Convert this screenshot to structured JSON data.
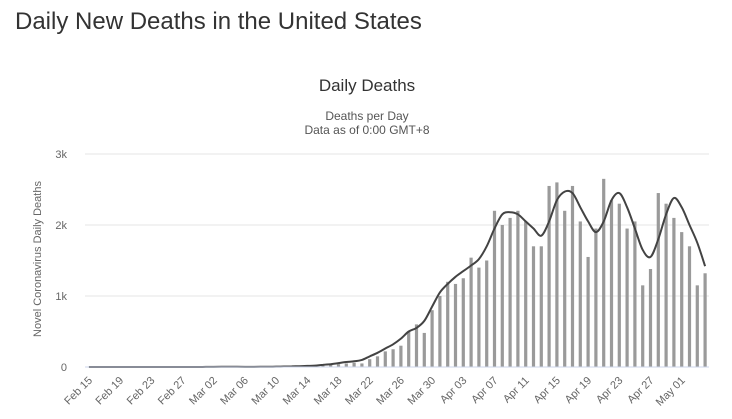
{
  "page": {
    "heading": "Daily New Deaths in the United States"
  },
  "chart_data": {
    "type": "bar",
    "title": "Daily Deaths",
    "subtitle_lines": [
      "Deaths per Day",
      "Data as of 0:00 GMT+8"
    ],
    "ylabel": "Novel Coronavirus Daily Deaths",
    "xlabel": "",
    "ylim": [
      0,
      3000
    ],
    "yticks": [
      0,
      1000,
      2000,
      3000
    ],
    "ytick_labels": [
      "0",
      "1k",
      "2k",
      "3k"
    ],
    "grid": true,
    "legend": "none",
    "categories": [
      "Feb 15",
      "Feb 16",
      "Feb 17",
      "Feb 18",
      "Feb 19",
      "Feb 20",
      "Feb 21",
      "Feb 22",
      "Feb 23",
      "Feb 24",
      "Feb 25",
      "Feb 26",
      "Feb 27",
      "Feb 28",
      "Feb 29",
      "Mar 01",
      "Mar 02",
      "Mar 03",
      "Mar 04",
      "Mar 05",
      "Mar 06",
      "Mar 07",
      "Mar 08",
      "Mar 09",
      "Mar 10",
      "Mar 11",
      "Mar 12",
      "Mar 13",
      "Mar 14",
      "Mar 15",
      "Mar 16",
      "Mar 17",
      "Mar 18",
      "Mar 19",
      "Mar 20",
      "Mar 21",
      "Mar 22",
      "Mar 23",
      "Mar 24",
      "Mar 25",
      "Mar 26",
      "Mar 27",
      "Mar 28",
      "Mar 29",
      "Mar 30",
      "Mar 31",
      "Apr 01",
      "Apr 02",
      "Apr 03",
      "Apr 04",
      "Apr 05",
      "Apr 06",
      "Apr 07",
      "Apr 08",
      "Apr 09",
      "Apr 10",
      "Apr 11",
      "Apr 12",
      "Apr 13",
      "Apr 14",
      "Apr 15",
      "Apr 16",
      "Apr 17",
      "Apr 18",
      "Apr 19",
      "Apr 20",
      "Apr 21",
      "Apr 22",
      "Apr 23",
      "Apr 24",
      "Apr 25",
      "Apr 26",
      "Apr 27",
      "Apr 28",
      "Apr 29",
      "Apr 30",
      "May 01",
      "May 02",
      "May 03",
      "May 04"
    ],
    "xtick_labels": [
      "Feb 15",
      "Feb 19",
      "Feb 23",
      "Feb 27",
      "Mar 02",
      "Mar 06",
      "Mar 10",
      "Mar 14",
      "Mar 18",
      "Mar 22",
      "Mar 26",
      "Mar 30",
      "Apr 03",
      "Apr 07",
      "Apr 11",
      "Apr 15",
      "Apr 19",
      "Apr 23",
      "Apr 27",
      "May 01"
    ],
    "series": [
      {
        "type": "bar",
        "color": "#9a9a9a",
        "values": [
          0,
          0,
          0,
          0,
          0,
          0,
          0,
          0,
          0,
          0,
          0,
          0,
          0,
          0,
          1,
          1,
          5,
          3,
          4,
          1,
          2,
          1,
          4,
          4,
          5,
          8,
          10,
          10,
          10,
          11,
          20,
          30,
          40,
          50,
          60,
          50,
          110,
          150,
          220,
          250,
          300,
          500,
          600,
          480,
          800,
          1000,
          1200,
          1170,
          1250,
          1540,
          1400,
          1500,
          2200,
          2000,
          2100,
          2200,
          2050,
          1700,
          1700,
          2550,
          2600,
          2200,
          2550,
          2050,
          1550,
          1950,
          2650,
          2350,
          2300,
          1950,
          2050,
          1150,
          1380,
          2450,
          2300,
          2100,
          1900,
          1700,
          1150,
          1320
        ]
      },
      {
        "type": "line",
        "color": "#434343",
        "values": [
          0,
          0,
          0,
          0,
          0,
          0,
          0,
          0,
          0,
          0,
          0,
          0,
          0,
          0,
          0,
          1,
          2,
          3,
          3,
          3,
          2,
          2,
          3,
          4,
          5,
          7,
          9,
          11,
          15,
          20,
          30,
          40,
          55,
          70,
          80,
          100,
          150,
          200,
          260,
          320,
          400,
          500,
          550,
          650,
          850,
          1050,
          1170,
          1270,
          1350,
          1430,
          1520,
          1700,
          1950,
          2150,
          2180,
          2150,
          2050,
          1950,
          1850,
          2050,
          2350,
          2470,
          2450,
          2250,
          2050,
          1900,
          2050,
          2350,
          2450,
          2250,
          1950,
          1650,
          1550,
          1800,
          2150,
          2380,
          2250,
          2000,
          1750,
          1420
        ]
      }
    ]
  }
}
